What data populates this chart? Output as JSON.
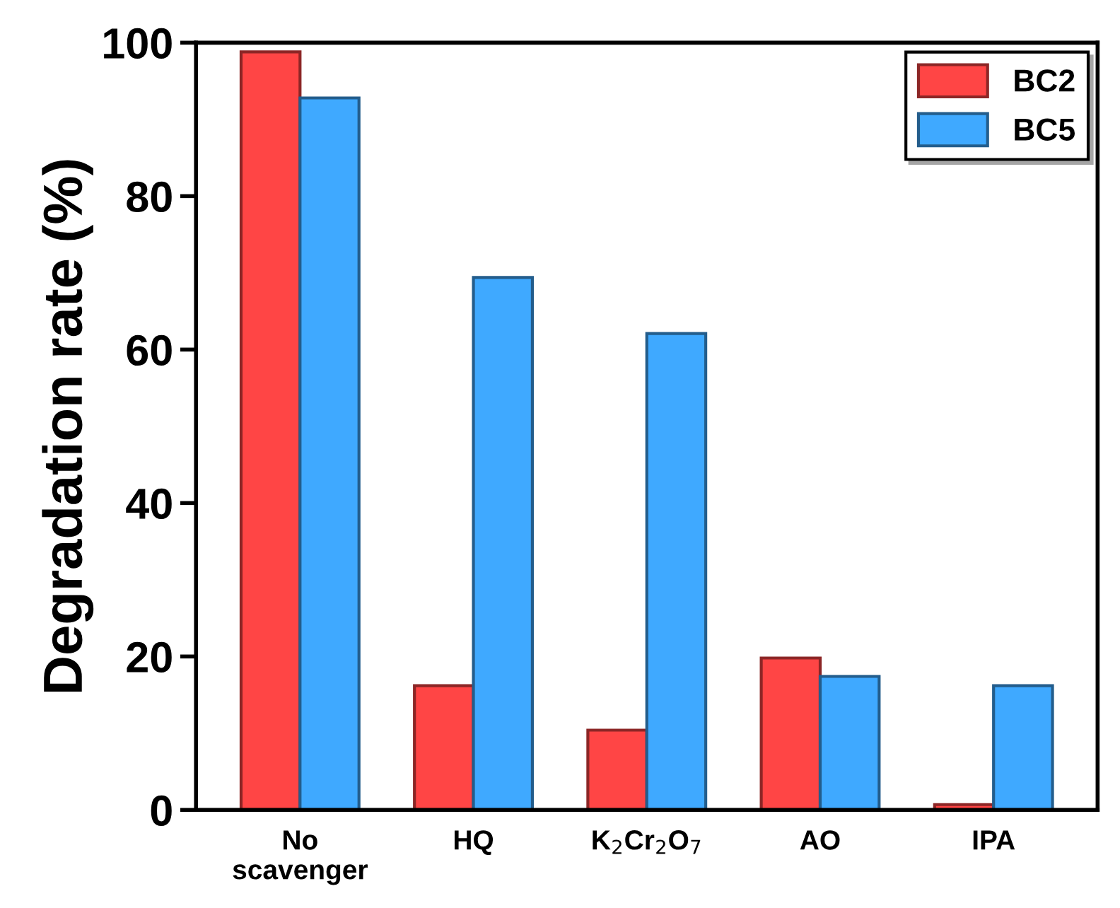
{
  "chart_data": {
    "type": "bar",
    "ylabel": "Degradation rate (%)",
    "categories": [
      "No\nscavenger",
      "HQ",
      "K$_{2}$Cr$_{2}$O$_{7}$",
      "AO",
      "IPA"
    ],
    "series": [
      {
        "name": "BC2",
        "color": "#ff4545",
        "values": [
          98.8,
          16.2,
          10.4,
          19.8,
          0.7
        ]
      },
      {
        "name": "BC5",
        "color": "#3fa9ff",
        "values": [
          92.8,
          69.4,
          62.1,
          17.4,
          16.2
        ]
      }
    ],
    "ylim": [
      0,
      100
    ],
    "yticks": [
      0,
      20,
      40,
      60,
      80,
      100
    ],
    "grid": false,
    "legend": "top right"
  }
}
